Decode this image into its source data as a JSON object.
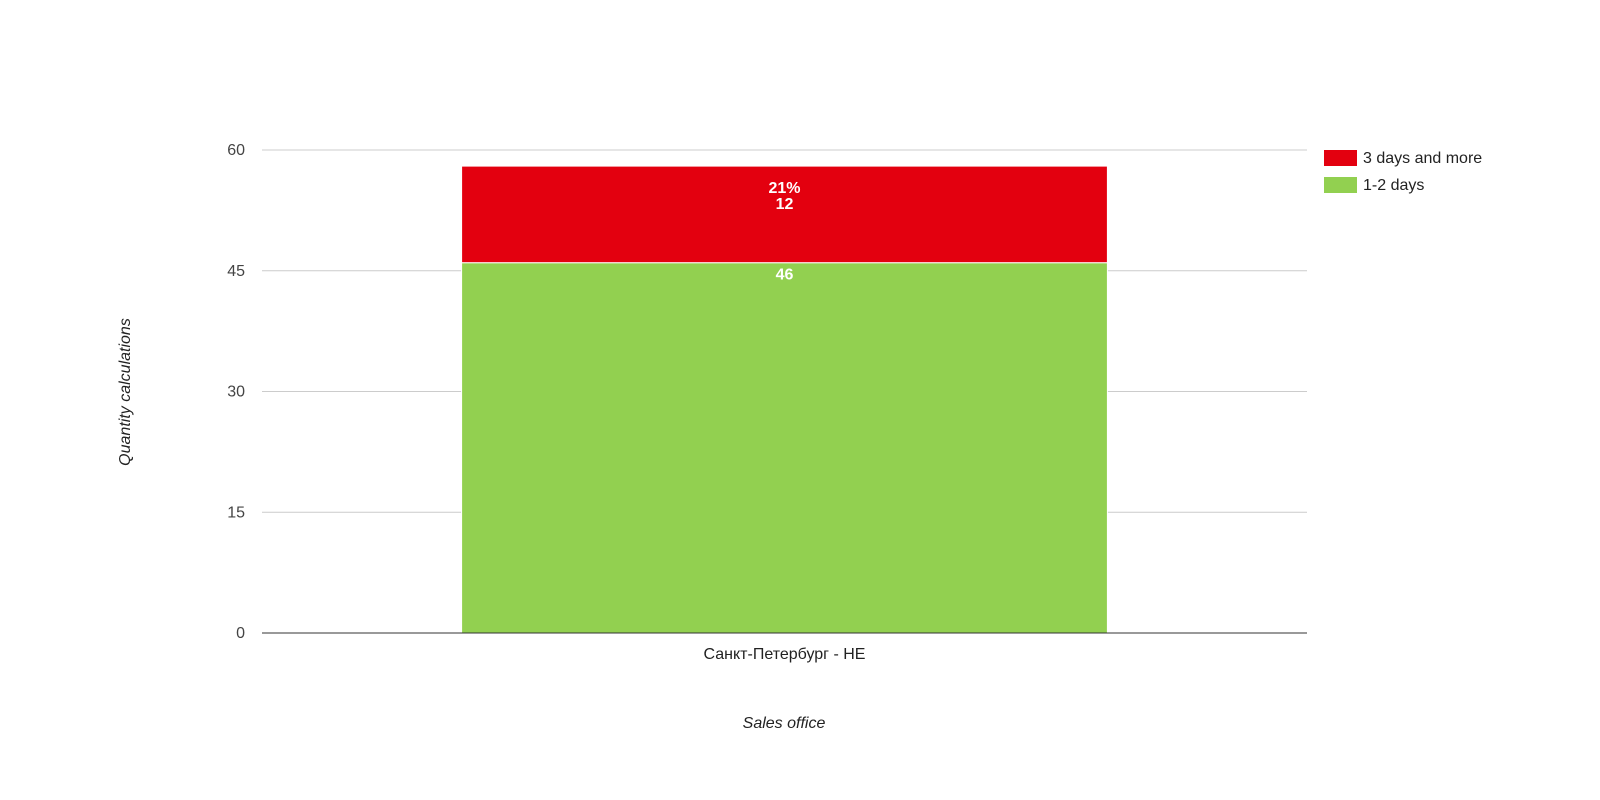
{
  "chart_data": {
    "type": "bar",
    "stacked": true,
    "categories": [
      "Санкт-Петербург - НЕ"
    ],
    "series": [
      {
        "name": "1-2 days",
        "values": [
          46
        ],
        "color": "#92d050",
        "labels": [
          "46"
        ]
      },
      {
        "name": "3 days and more",
        "values": [
          12
        ],
        "color": "#e3000f",
        "labels": [
          "12"
        ],
        "percent_labels": [
          "21%"
        ]
      }
    ],
    "xlabel": "Sales office",
    "ylabel": "Quantity calculations",
    "ylim": [
      0,
      60
    ],
    "yticks": [
      0,
      15,
      30,
      45,
      60
    ],
    "grid": true,
    "legend_position": "right-top",
    "legend_order": [
      "3 days and more",
      "1-2 days"
    ]
  }
}
